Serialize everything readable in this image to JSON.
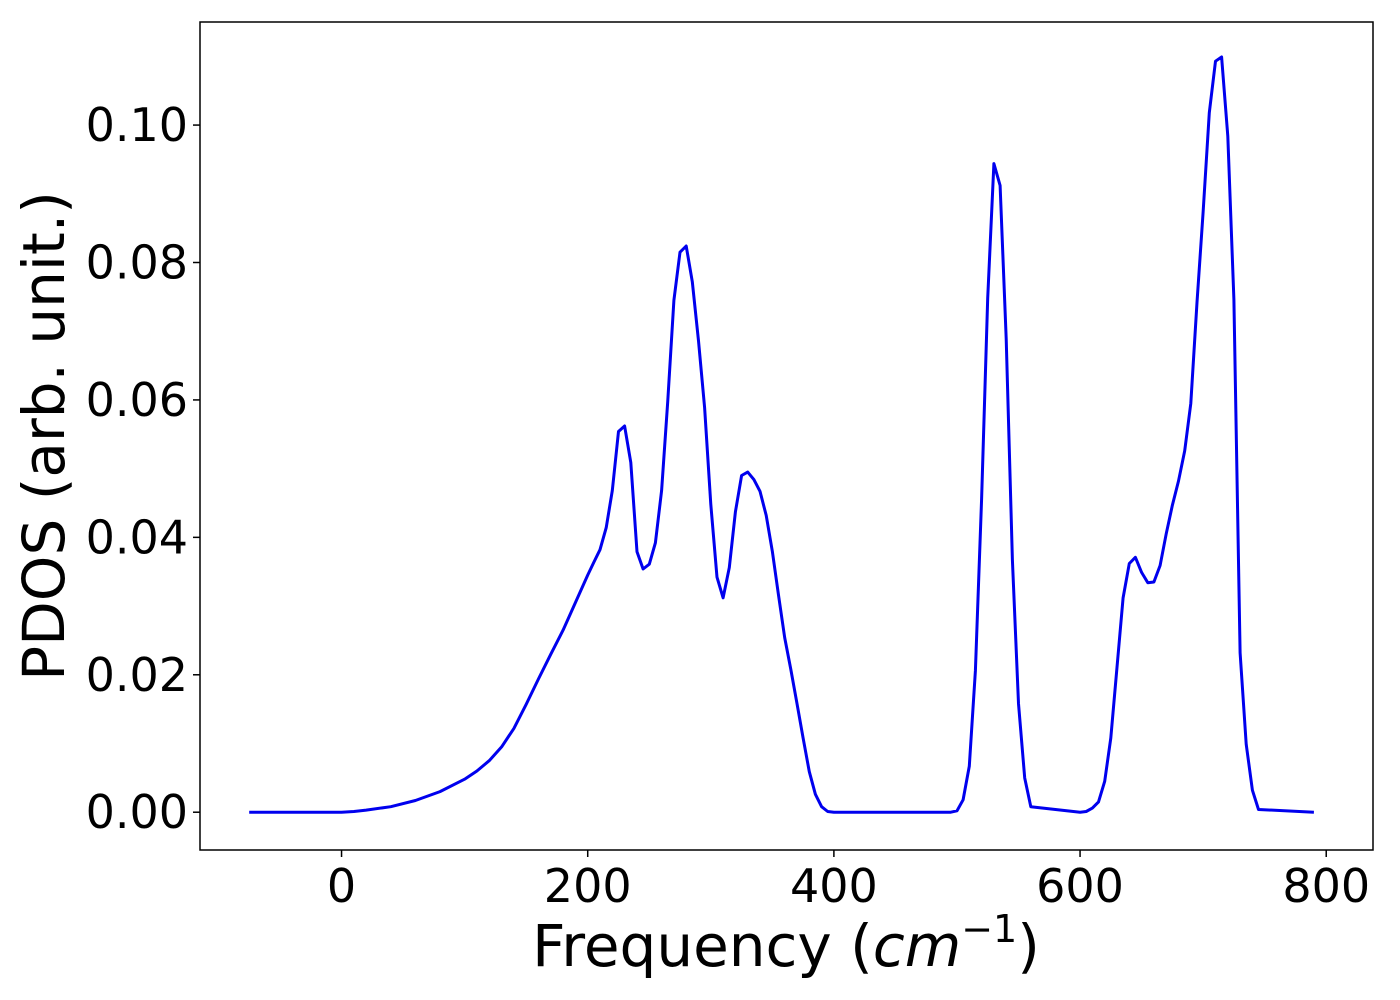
{
  "chart_data": {
    "type": "line",
    "title": "",
    "xlabel": "Frequency",
    "xlabel_unit": "cm",
    "xlabel_unit_exp": "−1",
    "ylabel": "PDOS (arb. unit.)",
    "xlim": [
      -115,
      838
    ],
    "ylim": [
      -0.0055,
      0.115
    ],
    "xticks": [
      0,
      200,
      400,
      600,
      800
    ],
    "yticks": [
      0.0,
      0.02,
      0.04,
      0.06,
      0.08,
      0.1
    ],
    "xtick_labels": [
      "0",
      "200",
      "400",
      "600",
      "800"
    ],
    "ytick_labels": [
      "0.00",
      "0.02",
      "0.04",
      "0.06",
      "0.08",
      "0.10"
    ],
    "grid": false,
    "series": [
      {
        "color": "#0000ee",
        "x": [
          -75,
          0,
          10,
          20,
          40,
          60,
          80,
          100,
          110,
          120,
          130,
          140,
          150,
          160,
          170,
          180,
          190,
          200,
          205,
          210,
          215,
          220,
          225,
          230,
          235,
          240,
          245,
          250,
          255,
          260,
          265,
          270,
          275,
          280,
          285,
          290,
          295,
          300,
          305,
          310,
          315,
          320,
          325,
          330,
          335,
          340,
          345,
          350,
          355,
          360,
          365,
          370,
          375,
          380,
          385,
          390,
          395,
          400,
          450,
          495,
          500,
          505,
          510,
          515,
          520,
          525,
          530,
          535,
          540,
          545,
          550,
          555,
          560,
          600,
          605,
          610,
          615,
          620,
          625,
          630,
          635,
          640,
          645,
          650,
          655,
          660,
          665,
          670,
          675,
          680,
          685,
          690,
          695,
          700,
          705,
          710,
          715,
          720,
          725,
          730,
          735,
          740,
          745,
          790
        ],
        "y": [
          0.0,
          0.0,
          0.0001,
          0.0003,
          0.0008,
          0.0017,
          0.003,
          0.0048,
          0.006,
          0.0075,
          0.0095,
          0.0122,
          0.0157,
          0.0194,
          0.023,
          0.0265,
          0.0305,
          0.0345,
          0.0364,
          0.0382,
          0.0414,
          0.0468,
          0.0554,
          0.0562,
          0.0509,
          0.0379,
          0.0354,
          0.0361,
          0.0392,
          0.0468,
          0.0597,
          0.0745,
          0.0815,
          0.0824,
          0.0772,
          0.0686,
          0.0589,
          0.0448,
          0.0342,
          0.0312,
          0.0356,
          0.0437,
          0.049,
          0.0495,
          0.0484,
          0.0467,
          0.0432,
          0.038,
          0.0316,
          0.0254,
          0.0208,
          0.0158,
          0.0108,
          0.0059,
          0.0026,
          0.0008,
          0.0001,
          0.0,
          0.0,
          0.0,
          0.0002,
          0.0018,
          0.0067,
          0.0206,
          0.0456,
          0.0748,
          0.0944,
          0.0912,
          0.0689,
          0.0367,
          0.0158,
          0.005,
          0.0008,
          0.0,
          0.0001,
          0.0006,
          0.0015,
          0.0045,
          0.0108,
          0.0211,
          0.0312,
          0.0362,
          0.0371,
          0.0349,
          0.0334,
          0.0335,
          0.0359,
          0.0405,
          0.0447,
          0.0482,
          0.0526,
          0.0595,
          0.0742,
          0.0873,
          0.1018,
          0.1093,
          0.1099,
          0.0984,
          0.0746,
          0.0232,
          0.0099,
          0.0032,
          0.0004,
          0.0
        ]
      }
    ]
  }
}
